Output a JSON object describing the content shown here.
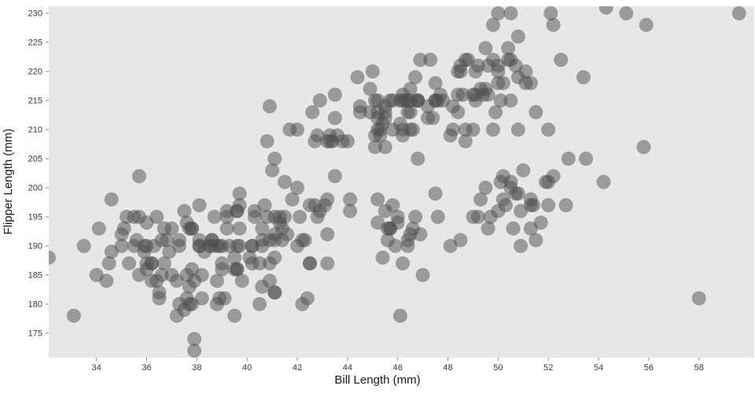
{
  "chart_data": {
    "type": "scatter",
    "title": "",
    "xlabel": "Bill Length (mm)",
    "ylabel": "Flipper Length (mm)",
    "xlim": [
      32.1,
      60.2
    ],
    "ylim": [
      170.8,
      231.2
    ],
    "xticks": [
      34,
      36,
      38,
      40,
      42,
      44,
      46,
      48,
      50,
      52,
      54,
      56,
      58
    ],
    "yticks": [
      175,
      180,
      185,
      190,
      195,
      200,
      205,
      210,
      215,
      220,
      225,
      230
    ],
    "grid": false,
    "legend": "none",
    "plot_bg": "#e7e7e7",
    "point_color": "#4d4d4d",
    "point_opacity": 0.5,
    "point_radius": 9,
    "points": [
      [
        39.1,
        181
      ],
      [
        39.5,
        186
      ],
      [
        40.3,
        195
      ],
      [
        36.7,
        193
      ],
      [
        39.3,
        190
      ],
      [
        38.9,
        181
      ],
      [
        39.2,
        195
      ],
      [
        34.1,
        193
      ],
      [
        42.0,
        190
      ],
      [
        37.8,
        186
      ],
      [
        37.8,
        180
      ],
      [
        41.1,
        182
      ],
      [
        38.6,
        191
      ],
      [
        34.6,
        198
      ],
      [
        36.6,
        185
      ],
      [
        38.7,
        195
      ],
      [
        42.5,
        197
      ],
      [
        34.4,
        184
      ],
      [
        46.0,
        194
      ],
      [
        37.9,
        174
      ],
      [
        37.7,
        180
      ],
      [
        35.9,
        189
      ],
      [
        38.2,
        185
      ],
      [
        38.8,
        180
      ],
      [
        35.3,
        187
      ],
      [
        40.6,
        183
      ],
      [
        40.5,
        187
      ],
      [
        37.9,
        172
      ],
      [
        40.5,
        180
      ],
      [
        39.5,
        178
      ],
      [
        37.2,
        178
      ],
      [
        39.5,
        188
      ],
      [
        40.9,
        184
      ],
      [
        36.4,
        195
      ],
      [
        39.2,
        196
      ],
      [
        38.8,
        190
      ],
      [
        42.2,
        180
      ],
      [
        37.6,
        181
      ],
      [
        39.8,
        184
      ],
      [
        36.5,
        182
      ],
      [
        40.8,
        195
      ],
      [
        36.0,
        186
      ],
      [
        44.1,
        196
      ],
      [
        37.0,
        185
      ],
      [
        39.6,
        190
      ],
      [
        41.1,
        182
      ],
      [
        37.5,
        179
      ],
      [
        36.0,
        190
      ],
      [
        42.3,
        191
      ],
      [
        39.6,
        186
      ],
      [
        40.1,
        188
      ],
      [
        35.0,
        190
      ],
      [
        42.0,
        200
      ],
      [
        34.5,
        187
      ],
      [
        41.4,
        191
      ],
      [
        39.0,
        186
      ],
      [
        40.6,
        193
      ],
      [
        36.5,
        181
      ],
      [
        37.6,
        194
      ],
      [
        35.7,
        185
      ],
      [
        41.3,
        195
      ],
      [
        37.6,
        185
      ],
      [
        41.1,
        192
      ],
      [
        36.4,
        184
      ],
      [
        41.6,
        192
      ],
      [
        35.5,
        195
      ],
      [
        41.1,
        188
      ],
      [
        35.9,
        190
      ],
      [
        41.8,
        198
      ],
      [
        33.5,
        190
      ],
      [
        39.7,
        190
      ],
      [
        39.6,
        196
      ],
      [
        45.8,
        197
      ],
      [
        35.5,
        190
      ],
      [
        42.8,
        195
      ],
      [
        40.9,
        191
      ],
      [
        37.2,
        184
      ],
      [
        36.2,
        187
      ],
      [
        42.1,
        195
      ],
      [
        34.6,
        189
      ],
      [
        42.9,
        196
      ],
      [
        36.7,
        187
      ],
      [
        35.1,
        193
      ],
      [
        37.3,
        191
      ],
      [
        41.3,
        194
      ],
      [
        36.3,
        190
      ],
      [
        36.9,
        189
      ],
      [
        38.3,
        189
      ],
      [
        38.9,
        190
      ],
      [
        35.7,
        202
      ],
      [
        41.1,
        205
      ],
      [
        34.0,
        185
      ],
      [
        39.6,
        186
      ],
      [
        36.2,
        187
      ],
      [
        40.8,
        208
      ],
      [
        38.1,
        190
      ],
      [
        40.3,
        196
      ],
      [
        33.1,
        178
      ],
      [
        43.2,
        192
      ],
      [
        35.0,
        192
      ],
      [
        41.0,
        203
      ],
      [
        37.7,
        183
      ],
      [
        37.8,
        193
      ],
      [
        37.9,
        184
      ],
      [
        39.7,
        199
      ],
      [
        38.6,
        190
      ],
      [
        38.2,
        181
      ],
      [
        38.1,
        197
      ],
      [
        43.2,
        198
      ],
      [
        38.1,
        191
      ],
      [
        45.6,
        193
      ],
      [
        39.7,
        197
      ],
      [
        42.2,
        191
      ],
      [
        39.6,
        196
      ],
      [
        42.7,
        197
      ],
      [
        38.6,
        191
      ],
      [
        37.3,
        190
      ],
      [
        35.7,
        195
      ],
      [
        41.1,
        191
      ],
      [
        36.2,
        184
      ],
      [
        37.7,
        193
      ],
      [
        40.2,
        187
      ],
      [
        41.4,
        193
      ],
      [
        35.2,
        195
      ],
      [
        40.6,
        190
      ],
      [
        38.8,
        184
      ],
      [
        41.5,
        201
      ],
      [
        39.0,
        190
      ],
      [
        44.1,
        198
      ],
      [
        38.5,
        190
      ],
      [
        43.1,
        197
      ],
      [
        36.8,
        191
      ],
      [
        37.5,
        196
      ],
      [
        38.1,
        190
      ],
      [
        41.1,
        195
      ],
      [
        35.6,
        191
      ],
      [
        40.2,
        190
      ],
      [
        37.0,
        193
      ],
      [
        39.7,
        193
      ],
      [
        40.2,
        190
      ],
      [
        40.6,
        191
      ],
      [
        32.1,
        188
      ],
      [
        40.7,
        197
      ],
      [
        37.3,
        180
      ],
      [
        39.0,
        187
      ],
      [
        39.2,
        193
      ],
      [
        36.6,
        191
      ],
      [
        36.0,
        194
      ],
      [
        37.8,
        193
      ],
      [
        36.0,
        187
      ],
      [
        41.5,
        195
      ],
      [
        46.1,
        211
      ],
      [
        50.0,
        230
      ],
      [
        48.7,
        210
      ],
      [
        50.0,
        218
      ],
      [
        47.6,
        215
      ],
      [
        46.5,
        210
      ],
      [
        45.4,
        211
      ],
      [
        46.7,
        219
      ],
      [
        43.3,
        209
      ],
      [
        46.8,
        215
      ],
      [
        40.9,
        214
      ],
      [
        49.0,
        216
      ],
      [
        45.5,
        214
      ],
      [
        48.4,
        213
      ],
      [
        45.8,
        210
      ],
      [
        49.3,
        217
      ],
      [
        42.0,
        210
      ],
      [
        49.2,
        221
      ],
      [
        46.2,
        209
      ],
      [
        48.7,
        222
      ],
      [
        50.2,
        218
      ],
      [
        45.1,
        215
      ],
      [
        46.5,
        213
      ],
      [
        46.3,
        215
      ],
      [
        42.9,
        215
      ],
      [
        46.1,
        215
      ],
      [
        44.5,
        213
      ],
      [
        47.8,
        215
      ],
      [
        48.2,
        210
      ],
      [
        50.0,
        220
      ],
      [
        47.3,
        222
      ],
      [
        42.8,
        209
      ],
      [
        45.1,
        207
      ],
      [
        59.6,
        230
      ],
      [
        49.1,
        220
      ],
      [
        48.4,
        220
      ],
      [
        42.6,
        213
      ],
      [
        44.4,
        219
      ],
      [
        44.0,
        208
      ],
      [
        48.7,
        208
      ],
      [
        42.7,
        208
      ],
      [
        49.6,
        221
      ],
      [
        45.3,
        210
      ],
      [
        49.6,
        216
      ],
      [
        50.5,
        222
      ],
      [
        43.6,
        209
      ],
      [
        45.5,
        207
      ],
      [
        50.5,
        230
      ],
      [
        44.9,
        217
      ],
      [
        45.2,
        210
      ],
      [
        46.6,
        210
      ],
      [
        48.5,
        221
      ],
      [
        45.1,
        209
      ],
      [
        50.1,
        215
      ],
      [
        46.5,
        217
      ],
      [
        45.0,
        220
      ],
      [
        43.8,
        208
      ],
      [
        45.5,
        213
      ],
      [
        43.2,
        208
      ],
      [
        50.4,
        222
      ],
      [
        45.3,
        209
      ],
      [
        46.2,
        216
      ],
      [
        45.7,
        215
      ],
      [
        54.3,
        231
      ],
      [
        45.8,
        215
      ],
      [
        49.8,
        228
      ],
      [
        46.2,
        210
      ],
      [
        49.5,
        217
      ],
      [
        43.5,
        216
      ],
      [
        50.7,
        221
      ],
      [
        47.7,
        216
      ],
      [
        46.4,
        213
      ],
      [
        48.2,
        214
      ],
      [
        46.5,
        215
      ],
      [
        46.4,
        215
      ],
      [
        48.6,
        216
      ],
      [
        47.5,
        215
      ],
      [
        51.1,
        220
      ],
      [
        45.2,
        213
      ],
      [
        45.2,
        215
      ],
      [
        49.1,
        215
      ],
      [
        52.5,
        222
      ],
      [
        47.4,
        212
      ],
      [
        50.0,
        221
      ],
      [
        44.9,
        213
      ],
      [
        50.8,
        219
      ],
      [
        43.4,
        208
      ],
      [
        51.3,
        218
      ],
      [
        47.5,
        215
      ],
      [
        52.1,
        230
      ],
      [
        47.5,
        218
      ],
      [
        52.2,
        228
      ],
      [
        45.5,
        212
      ],
      [
        49.5,
        224
      ],
      [
        44.5,
        214
      ],
      [
        50.8,
        226
      ],
      [
        49.4,
        216
      ],
      [
        46.9,
        222
      ],
      [
        48.4,
        216
      ],
      [
        51.1,
        218
      ],
      [
        48.5,
        220
      ],
      [
        55.9,
        228
      ],
      [
        47.2,
        214
      ],
      [
        49.1,
        216
      ],
      [
        46.8,
        215
      ],
      [
        41.7,
        210
      ],
      [
        53.4,
        219
      ],
      [
        43.3,
        208
      ],
      [
        48.1,
        209
      ],
      [
        50.5,
        215
      ],
      [
        49.8,
        222
      ],
      [
        43.5,
        212
      ],
      [
        51.5,
        213
      ],
      [
        46.2,
        215
      ],
      [
        55.1,
        230
      ],
      [
        48.8,
        222
      ],
      [
        47.2,
        212
      ],
      [
        46.8,
        215
      ],
      [
        50.4,
        224
      ],
      [
        45.2,
        212
      ],
      [
        49.9,
        213
      ],
      [
        46.5,
        192
      ],
      [
        50.0,
        196
      ],
      [
        51.3,
        193
      ],
      [
        45.4,
        188
      ],
      [
        52.7,
        197
      ],
      [
        45.2,
        198
      ],
      [
        46.1,
        178
      ],
      [
        51.3,
        197
      ],
      [
        46.0,
        195
      ],
      [
        51.3,
        198
      ],
      [
        46.6,
        193
      ],
      [
        51.7,
        194
      ],
      [
        47.0,
        185
      ],
      [
        52.0,
        201
      ],
      [
        45.9,
        190
      ],
      [
        50.5,
        201
      ],
      [
        50.3,
        197
      ],
      [
        58.0,
        181
      ],
      [
        46.4,
        190
      ],
      [
        49.2,
        195
      ],
      [
        42.4,
        181
      ],
      [
        48.5,
        191
      ],
      [
        43.2,
        187
      ],
      [
        50.6,
        193
      ],
      [
        46.7,
        195
      ],
      [
        52.0,
        197
      ],
      [
        50.5,
        200
      ],
      [
        49.5,
        200
      ],
      [
        46.4,
        191
      ],
      [
        52.8,
        205
      ],
      [
        40.9,
        187
      ],
      [
        54.2,
        201
      ],
      [
        42.5,
        187
      ],
      [
        51.0,
        203
      ],
      [
        49.7,
        195
      ],
      [
        47.5,
        199
      ],
      [
        47.6,
        195
      ],
      [
        52.0,
        210
      ],
      [
        46.9,
        192
      ],
      [
        53.5,
        205
      ],
      [
        49.0,
        210
      ],
      [
        46.2,
        187
      ],
      [
        50.9,
        196
      ],
      [
        45.5,
        196
      ],
      [
        50.9,
        190
      ],
      [
        50.8,
        199
      ],
      [
        50.1,
        201
      ],
      [
        49.0,
        195
      ],
      [
        51.5,
        191
      ],
      [
        49.8,
        210
      ],
      [
        48.1,
        190
      ],
      [
        51.4,
        197
      ],
      [
        45.7,
        193
      ],
      [
        50.7,
        199
      ],
      [
        42.5,
        187
      ],
      [
        52.2,
        202
      ],
      [
        45.2,
        194
      ],
      [
        49.3,
        198
      ],
      [
        50.2,
        202
      ],
      [
        45.6,
        191
      ],
      [
        51.9,
        201
      ],
      [
        46.8,
        205
      ],
      [
        45.7,
        193
      ],
      [
        55.8,
        207
      ],
      [
        43.5,
        202
      ],
      [
        49.6,
        193
      ],
      [
        50.8,
        210
      ],
      [
        50.2,
        198
      ]
    ]
  }
}
